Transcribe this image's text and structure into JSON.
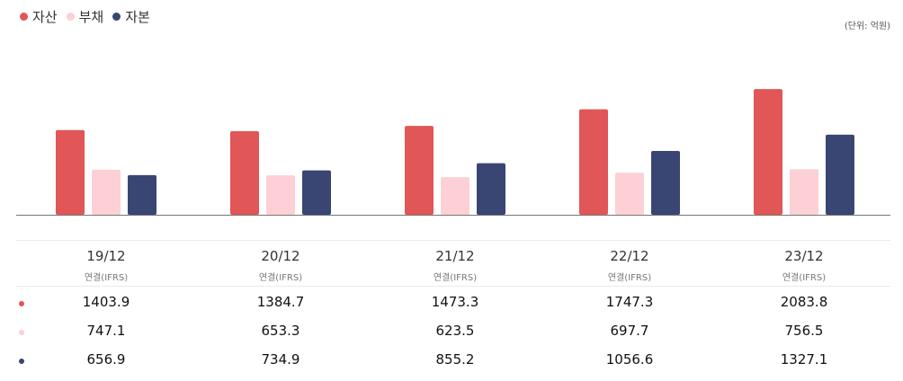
{
  "legend": [
    {
      "label": "자산",
      "color": "#e15656"
    },
    {
      "label": "부채",
      "color": "#fcd0d5"
    },
    {
      "label": "자본",
      "color": "#394673"
    }
  ],
  "unit_label": "(단위: 억원)",
  "chart_data": {
    "type": "bar",
    "categories": [
      "19/12",
      "20/12",
      "21/12",
      "22/12",
      "23/12"
    ],
    "category_sublabel": "연결(IFRS)",
    "series": [
      {
        "name": "자산",
        "color": "#e15656",
        "values": [
          1403.9,
          1384.7,
          1473.3,
          1747.3,
          2083.8
        ],
        "labels": [
          "1403.9",
          "1384.7",
          "1473.3",
          "1747.3",
          "2083.8"
        ]
      },
      {
        "name": "부채",
        "color": "#fcd0d5",
        "values": [
          747.1,
          653.3,
          623.5,
          697.7,
          756.5
        ],
        "labels": [
          "747.1",
          "653.3",
          "623.5",
          "697.7",
          "756.5"
        ]
      },
      {
        "name": "자본",
        "color": "#394673",
        "values": [
          656.9,
          734.9,
          855.2,
          1056.6,
          1327.1
        ],
        "labels": [
          "656.9",
          "734.9",
          "855.2",
          "1056.6",
          "1327.1"
        ]
      }
    ],
    "ylim": [
      0,
      2100
    ],
    "grid": false,
    "legend_position": "top-left"
  }
}
